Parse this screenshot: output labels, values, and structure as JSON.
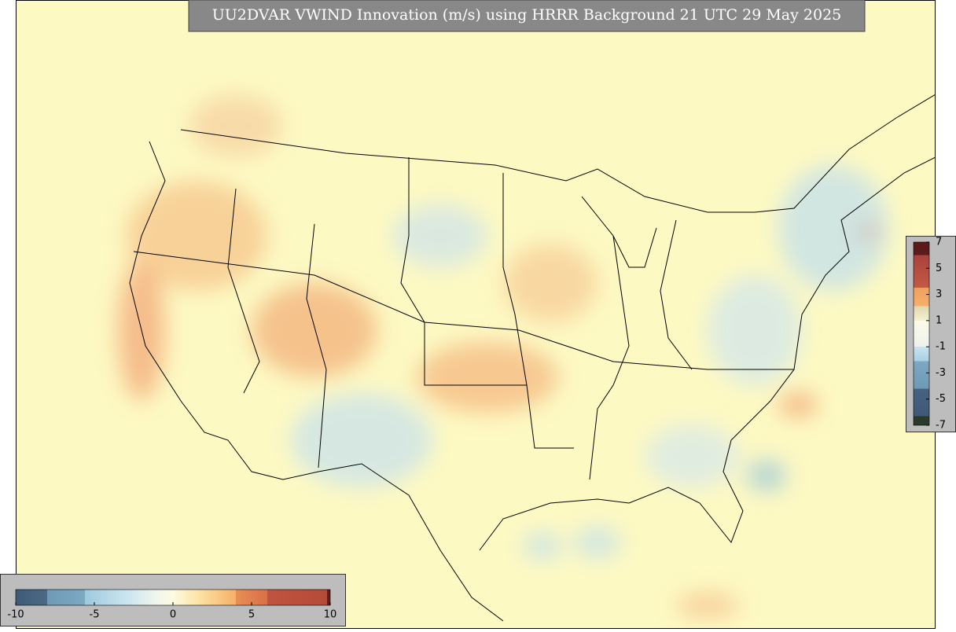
{
  "title": "UU2DVAR VWIND Innovation (m/s) using HRRR Background 21 UTC 29 May 2025",
  "colorbars": [
    {
      "orientation": "horizontal",
      "lim": [
        -10,
        10
      ],
      "ticks": [
        -10,
        -5,
        0,
        5,
        10
      ]
    },
    {
      "orientation": "vertical",
      "lim": [
        -7,
        7
      ],
      "ticks": [
        7,
        5,
        3,
        1,
        -1,
        -3,
        -5,
        -7
      ]
    }
  ]
}
